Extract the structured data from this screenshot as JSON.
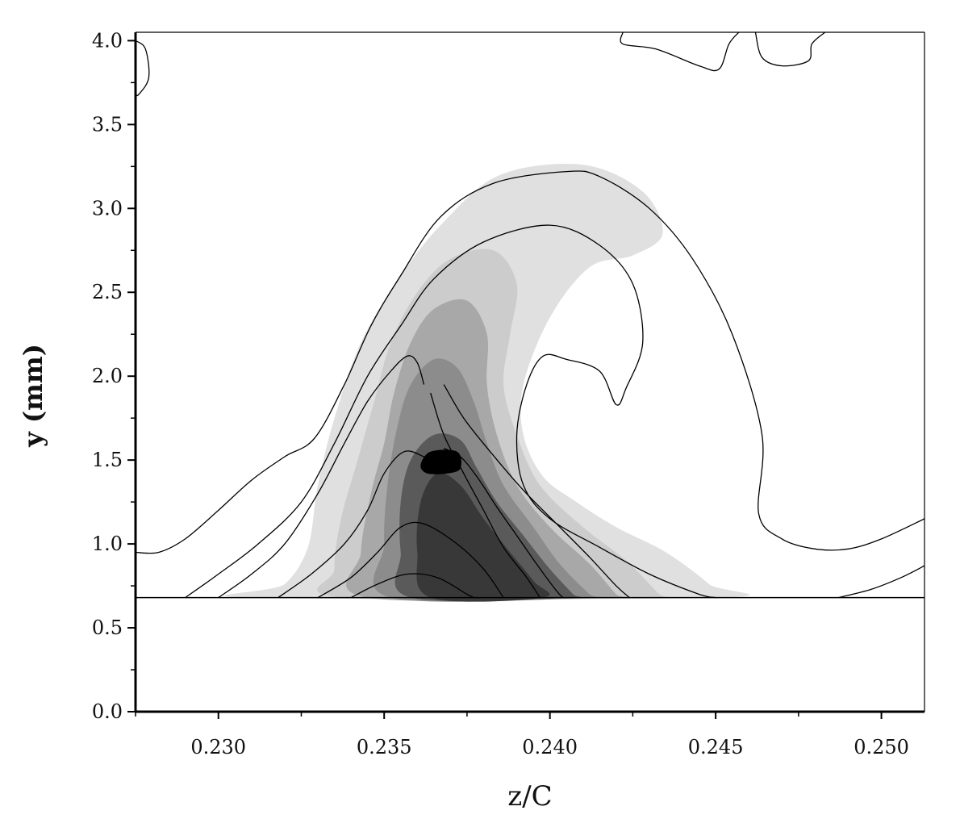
{
  "chart_data": {
    "type": "contour",
    "title": "",
    "xlabel": "z/C",
    "ylabel": "y (mm)",
    "xlim": [
      0.2275,
      0.2513
    ],
    "ylim": [
      0.0,
      4.05
    ],
    "x_ticks": [
      0.23,
      0.235,
      0.24,
      0.245,
      0.25
    ],
    "x_tick_labels": [
      "0.230",
      "0.235",
      "0.240",
      "0.245",
      "0.250"
    ],
    "y_ticks": [
      0.0,
      0.5,
      1.0,
      1.5,
      2.0,
      2.5,
      3.0,
      3.5,
      4.0
    ],
    "y_tick_labels": [
      "0.0",
      "0.5",
      "1.0",
      "1.5",
      "2.0",
      "2.5",
      "3.0",
      "3.5",
      "4.0"
    ],
    "wall_y": 0.68,
    "grid": false,
    "legend": "none",
    "filled_levels": [
      {
        "level": 1,
        "color": "#e0e0e0",
        "points": [
          [
            0.231,
            0.68
          ],
          [
            0.232,
            0.76
          ],
          [
            0.2327,
            0.98
          ],
          [
            0.233,
            1.35
          ],
          [
            0.2335,
            1.75
          ],
          [
            0.2343,
            2.2
          ],
          [
            0.2355,
            2.6
          ],
          [
            0.2368,
            2.92
          ],
          [
            0.2385,
            3.2
          ],
          [
            0.241,
            3.26
          ],
          [
            0.2428,
            3.1
          ],
          [
            0.2434,
            2.85
          ],
          [
            0.2425,
            2.72
          ],
          [
            0.2412,
            2.65
          ],
          [
            0.24,
            2.35
          ],
          [
            0.2392,
            1.95
          ],
          [
            0.2392,
            1.65
          ],
          [
            0.2398,
            1.4
          ],
          [
            0.2408,
            1.25
          ],
          [
            0.242,
            1.1
          ],
          [
            0.2435,
            0.95
          ],
          [
            0.2448,
            0.76
          ],
          [
            0.245,
            0.68
          ]
        ]
      },
      {
        "level": 2,
        "color": "#cccccc",
        "points": [
          [
            0.2338,
            0.68
          ],
          [
            0.2335,
            0.85
          ],
          [
            0.2337,
            1.15
          ],
          [
            0.2342,
            1.5
          ],
          [
            0.2347,
            1.85
          ],
          [
            0.2352,
            2.2
          ],
          [
            0.236,
            2.5
          ],
          [
            0.237,
            2.7
          ],
          [
            0.2383,
            2.75
          ],
          [
            0.239,
            2.55
          ],
          [
            0.2388,
            2.25
          ],
          [
            0.2386,
            1.95
          ],
          [
            0.239,
            1.65
          ],
          [
            0.2397,
            1.35
          ],
          [
            0.241,
            1.1
          ],
          [
            0.2423,
            0.9
          ],
          [
            0.2433,
            0.7
          ],
          [
            0.2435,
            0.68
          ]
        ]
      },
      {
        "level": 3,
        "color": "#a8a8a8",
        "points": [
          [
            0.2345,
            0.68
          ],
          [
            0.2343,
            0.95
          ],
          [
            0.2346,
            1.3
          ],
          [
            0.235,
            1.6
          ],
          [
            0.2353,
            1.9
          ],
          [
            0.2358,
            2.2
          ],
          [
            0.2365,
            2.4
          ],
          [
            0.2375,
            2.45
          ],
          [
            0.2381,
            2.25
          ],
          [
            0.2381,
            1.95
          ],
          [
            0.2384,
            1.65
          ],
          [
            0.239,
            1.35
          ],
          [
            0.24,
            1.1
          ],
          [
            0.2412,
            0.88
          ],
          [
            0.242,
            0.7
          ],
          [
            0.2422,
            0.68
          ]
        ]
      },
      {
        "level": 4,
        "color": "#8c8c8c",
        "points": [
          [
            0.2352,
            0.68
          ],
          [
            0.235,
            1.0
          ],
          [
            0.2351,
            1.35
          ],
          [
            0.2354,
            1.7
          ],
          [
            0.2358,
            1.95
          ],
          [
            0.2365,
            2.1
          ],
          [
            0.2372,
            2.05
          ],
          [
            0.2377,
            1.85
          ],
          [
            0.2381,
            1.6
          ],
          [
            0.2386,
            1.35
          ],
          [
            0.2395,
            1.1
          ],
          [
            0.2403,
            0.88
          ],
          [
            0.2412,
            0.7
          ],
          [
            0.2414,
            0.68
          ]
        ]
      },
      {
        "level": 5,
        "color": "#5a5a5a",
        "points": [
          [
            0.2358,
            0.68
          ],
          [
            0.2355,
            0.95
          ],
          [
            0.2355,
            1.25
          ],
          [
            0.2358,
            1.5
          ],
          [
            0.2365,
            1.65
          ],
          [
            0.2373,
            1.62
          ],
          [
            0.2378,
            1.45
          ],
          [
            0.2384,
            1.25
          ],
          [
            0.2392,
            1.05
          ],
          [
            0.24,
            0.85
          ],
          [
            0.2407,
            0.7
          ],
          [
            0.2408,
            0.68
          ]
        ]
      },
      {
        "level": 6,
        "color": "#383838",
        "points": [
          [
            0.2364,
            0.68
          ],
          [
            0.236,
            0.95
          ],
          [
            0.2361,
            1.25
          ],
          [
            0.2366,
            1.42
          ],
          [
            0.2373,
            1.35
          ],
          [
            0.238,
            1.15
          ],
          [
            0.2388,
            0.95
          ],
          [
            0.2395,
            0.78
          ],
          [
            0.2398,
            0.68
          ]
        ]
      },
      {
        "level": 7,
        "color": "#000000",
        "points": [
          [
            0.2361,
            1.47
          ],
          [
            0.2364,
            1.55
          ],
          [
            0.2372,
            1.55
          ],
          [
            0.2373,
            1.45
          ],
          [
            0.2369,
            1.42
          ],
          [
            0.2363,
            1.42
          ]
        ]
      }
    ],
    "contour_lines": [
      {
        "points": [
          [
            0.2275,
            0.95
          ],
          [
            0.2282,
            0.95
          ],
          [
            0.229,
            1.03
          ],
          [
            0.23,
            1.2
          ],
          [
            0.231,
            1.38
          ],
          [
            0.232,
            1.52
          ],
          [
            0.2329,
            1.63
          ],
          [
            0.2338,
            1.95
          ],
          [
            0.2346,
            2.3
          ],
          [
            0.2355,
            2.6
          ],
          [
            0.2367,
            2.95
          ],
          [
            0.2383,
            3.15
          ],
          [
            0.2405,
            3.22
          ],
          [
            0.2415,
            3.19
          ],
          [
            0.243,
            3.0
          ],
          [
            0.2443,
            2.7
          ],
          [
            0.2455,
            2.25
          ],
          [
            0.2464,
            1.65
          ],
          [
            0.2463,
            1.18
          ],
          [
            0.247,
            1.03
          ],
          [
            0.248,
            0.97
          ],
          [
            0.249,
            0.97
          ],
          [
            0.25,
            1.03
          ],
          [
            0.2513,
            1.15
          ]
        ]
      },
      {
        "points": [
          [
            0.229,
            0.68
          ],
          [
            0.23,
            0.82
          ],
          [
            0.2312,
            1.0
          ],
          [
            0.2325,
            1.25
          ],
          [
            0.2335,
            1.6
          ],
          [
            0.2345,
            2.0
          ],
          [
            0.2355,
            2.3
          ],
          [
            0.2365,
            2.58
          ],
          [
            0.238,
            2.8
          ],
          [
            0.24,
            2.9
          ],
          [
            0.2415,
            2.78
          ],
          [
            0.2425,
            2.55
          ],
          [
            0.2428,
            2.2
          ],
          [
            0.2423,
            1.93
          ],
          [
            0.242,
            1.83
          ],
          [
            0.2415,
            2.03
          ],
          [
            0.2405,
            2.1
          ],
          [
            0.2398,
            2.12
          ],
          [
            0.2393,
            1.95
          ],
          [
            0.239,
            1.65
          ],
          [
            0.2392,
            1.35
          ],
          [
            0.24,
            1.15
          ],
          [
            0.2415,
            0.98
          ],
          [
            0.243,
            0.82
          ],
          [
            0.2445,
            0.7
          ],
          [
            0.245,
            0.68
          ]
        ]
      },
      {
        "points": [
          [
            0.23,
            0.68
          ],
          [
            0.231,
            0.82
          ],
          [
            0.232,
            1.0
          ],
          [
            0.233,
            1.3
          ],
          [
            0.2338,
            1.6
          ],
          [
            0.2345,
            1.85
          ],
          [
            0.2352,
            2.03
          ],
          [
            0.2357,
            2.12
          ],
          [
            0.236,
            2.08
          ],
          [
            0.2362,
            1.95
          ]
        ]
      },
      {
        "points": [
          [
            0.2318,
            0.68
          ],
          [
            0.2328,
            0.82
          ],
          [
            0.2338,
            1.0
          ],
          [
            0.2345,
            1.2
          ],
          [
            0.235,
            1.42
          ],
          [
            0.2356,
            1.55
          ],
          [
            0.2362,
            1.52
          ],
          [
            0.2366,
            1.48
          ]
        ]
      },
      {
        "points": [
          [
            0.233,
            0.68
          ],
          [
            0.234,
            0.8
          ],
          [
            0.2348,
            0.95
          ],
          [
            0.2355,
            1.1
          ],
          [
            0.2362,
            1.12
          ],
          [
            0.2372,
            1.0
          ],
          [
            0.238,
            0.85
          ],
          [
            0.2386,
            0.68
          ]
        ]
      },
      {
        "points": [
          [
            0.234,
            0.68
          ],
          [
            0.2348,
            0.76
          ],
          [
            0.2357,
            0.82
          ],
          [
            0.2366,
            0.8
          ],
          [
            0.2375,
            0.7
          ],
          [
            0.2377,
            0.68
          ]
        ]
      },
      {
        "points": [
          [
            0.2368,
            1.57
          ],
          [
            0.2373,
            1.52
          ],
          [
            0.2378,
            1.4
          ],
          [
            0.2384,
            1.22
          ],
          [
            0.239,
            1.05
          ],
          [
            0.2396,
            0.88
          ],
          [
            0.2402,
            0.72
          ],
          [
            0.2404,
            0.68
          ]
        ]
      },
      {
        "points": [
          [
            0.2364,
            1.9
          ],
          [
            0.2368,
            1.65
          ],
          [
            0.2374,
            1.42
          ],
          [
            0.238,
            1.2
          ],
          [
            0.2386,
            0.98
          ],
          [
            0.2393,
            0.8
          ],
          [
            0.2397,
            0.68
          ]
        ]
      },
      {
        "points": [
          [
            0.2368,
            1.95
          ],
          [
            0.2374,
            1.75
          ],
          [
            0.2382,
            1.55
          ],
          [
            0.2392,
            1.32
          ],
          [
            0.2402,
            1.12
          ],
          [
            0.2412,
            0.92
          ],
          [
            0.242,
            0.75
          ],
          [
            0.2424,
            0.68
          ]
        ]
      },
      {
        "points": [
          [
            0.2487,
            0.68
          ],
          [
            0.2497,
            0.73
          ],
          [
            0.2506,
            0.8
          ],
          [
            0.2513,
            0.87
          ]
        ]
      },
      {
        "points": [
          [
            0.2422,
            4.05
          ],
          [
            0.2422,
            3.98
          ],
          [
            0.2432,
            3.95
          ],
          [
            0.2445,
            3.85
          ],
          [
            0.2451,
            3.83
          ],
          [
            0.2454,
            3.98
          ],
          [
            0.2457,
            4.05
          ]
        ]
      },
      {
        "points": [
          [
            0.2462,
            4.05
          ],
          [
            0.2464,
            3.9
          ],
          [
            0.247,
            3.85
          ],
          [
            0.2478,
            3.88
          ],
          [
            0.2479,
            3.98
          ],
          [
            0.2483,
            4.05
          ]
        ]
      },
      {
        "points": [
          [
            0.2275,
            4.0
          ],
          [
            0.2278,
            3.95
          ],
          [
            0.2279,
            3.78
          ],
          [
            0.2276,
            3.68
          ],
          [
            0.2275,
            3.68
          ]
        ]
      }
    ]
  }
}
